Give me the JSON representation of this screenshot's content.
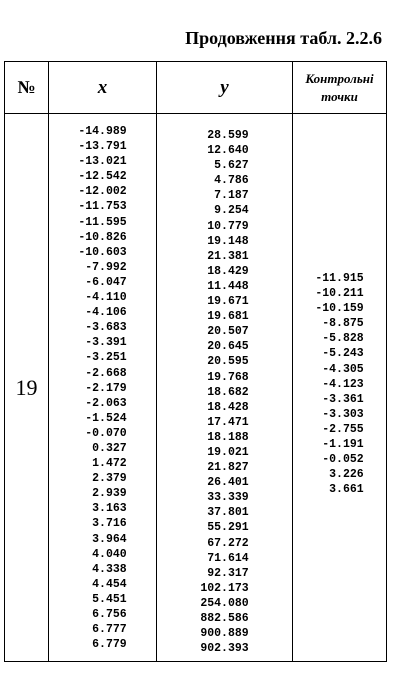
{
  "caption": "Продовження табл. 2.2.6",
  "headers": {
    "num": "№",
    "x": "x",
    "y": "y",
    "control_line1": "Контрольні",
    "control_line2": "точки"
  },
  "row": {
    "number": "19",
    "x": [
      "-14.989",
      "-13.791",
      "-13.021",
      "-12.542",
      "-12.002",
      "-11.753",
      "-11.595",
      "-10.826",
      "-10.603",
      "-7.992",
      "-6.047",
      "-4.110",
      "-4.106",
      "-3.683",
      "-3.391",
      "-3.251",
      "-2.668",
      "-2.179",
      "-2.063",
      "-1.524",
      "-0.070",
      "0.327",
      "1.472",
      "2.379",
      "2.939",
      "3.163",
      "3.716",
      "3.964",
      "4.040",
      "4.338",
      "4.454",
      "5.451",
      "6.756",
      "6.777",
      "6.779"
    ],
    "y": [
      "28.599",
      "12.640",
      "5.627",
      "4.786",
      "7.187",
      "9.254",
      "10.779",
      "19.148",
      "21.381",
      "18.429",
      "11.448",
      "19.671",
      "19.681",
      "20.507",
      "20.645",
      "20.595",
      "19.768",
      "18.682",
      "18.428",
      "17.471",
      "18.188",
      "19.021",
      "21.827",
      "26.401",
      "33.339",
      "37.801",
      "55.291",
      "67.272",
      "71.614",
      "92.317",
      "102.173",
      "254.080",
      "882.586",
      "900.889",
      "902.393"
    ],
    "control": [
      "-11.915",
      "-10.211",
      "-10.159",
      "-8.875",
      "-5.828",
      "-5.243",
      "-4.305",
      "-4.123",
      "-3.361",
      "-3.303",
      "-2.755",
      "-1.191",
      "-0.052",
      "3.226",
      "3.661"
    ]
  }
}
